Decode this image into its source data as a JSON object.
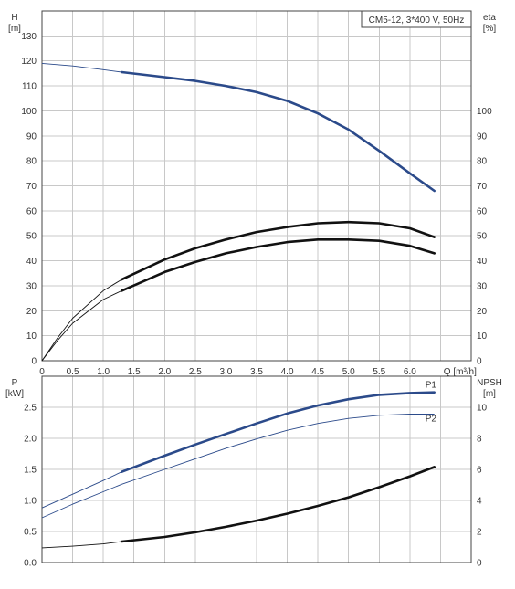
{
  "chart_data": [
    {
      "type": "line",
      "title": "CM5-12, 3*400 V, 50Hz",
      "xlabel": "Q [m³/h]",
      "x_ticks": [
        "0",
        "0.5",
        "1.0",
        "1.5",
        "2.0",
        "2.5",
        "3.0",
        "3.5",
        "4.0",
        "4.5",
        "5.0",
        "5.5",
        "6.0",
        "Q [m³/h]"
      ],
      "xlim": [
        0,
        7.0
      ],
      "ylabel_left": [
        "H",
        "[m]"
      ],
      "ylabel_right": [
        "eta",
        "[%]"
      ],
      "ylim_left": [
        0,
        140
      ],
      "ylim_right": [
        0,
        140
      ],
      "y_ticks_left": [
        0,
        10,
        20,
        30,
        40,
        50,
        60,
        70,
        80,
        90,
        100,
        110,
        120,
        130
      ],
      "y_ticks_right": [
        0,
        10,
        20,
        30,
        40,
        50,
        60,
        70,
        80,
        90,
        100
      ],
      "grid": true,
      "series": [
        {
          "name": "",
          "color": "#2b4a8a",
          "highlight_from": 1.3,
          "x": [
            0,
            0.5,
            1.0,
            1.3,
            2.0,
            2.5,
            3.0,
            3.5,
            4.0,
            4.5,
            5.0,
            5.5,
            6.0,
            6.4
          ],
          "y": [
            119,
            118,
            116.5,
            115.5,
            113.5,
            112,
            110,
            107.5,
            104,
            99,
            92.5,
            84,
            75,
            68
          ]
        },
        {
          "name": "",
          "color": "#111111",
          "highlight_from": 1.3,
          "x": [
            0,
            0.25,
            0.5,
            1.0,
            1.3,
            2.0,
            2.5,
            3.0,
            3.5,
            4.0,
            4.5,
            5.0,
            5.5,
            6.0,
            6.4
          ],
          "y": [
            0,
            9,
            17,
            28,
            32.5,
            40.5,
            45,
            48.5,
            51.5,
            53.5,
            55,
            55.5,
            55,
            53,
            49.5
          ]
        },
        {
          "name": "",
          "color": "#111111",
          "highlight_from": 1.3,
          "x": [
            0,
            0.25,
            0.5,
            1.0,
            1.3,
            2.0,
            2.5,
            3.0,
            3.5,
            4.0,
            4.5,
            5.0,
            5.5,
            6.0,
            6.4
          ],
          "y": [
            0,
            8,
            15,
            24.5,
            28,
            35.5,
            39.5,
            43,
            45.5,
            47.5,
            48.5,
            48.5,
            48,
            46,
            43
          ]
        }
      ]
    },
    {
      "type": "line",
      "xlim": [
        0,
        7.0
      ],
      "ylabel_left": [
        "P",
        "[kW]"
      ],
      "ylabel_right": [
        "NPSH",
        "[m]"
      ],
      "ylim_left": [
        0,
        3.0
      ],
      "ylim_right": [
        0,
        12
      ],
      "y_ticks_left": [
        "0.0",
        "0.5",
        "1.0",
        "1.5",
        "2.0",
        "2.5"
      ],
      "y_ticks_right": [
        0,
        2,
        4,
        6,
        8,
        10
      ],
      "grid": true,
      "series": [
        {
          "name": "P1",
          "color": "#2b4a8a",
          "highlight_from": 1.3,
          "x": [
            0,
            0.5,
            1.0,
            1.3,
            2.0,
            2.5,
            3.0,
            3.5,
            4.0,
            4.5,
            5.0,
            5.5,
            6.0,
            6.4
          ],
          "y": [
            0.88,
            1.1,
            1.32,
            1.46,
            1.72,
            1.9,
            2.07,
            2.24,
            2.4,
            2.53,
            2.63,
            2.7,
            2.73,
            2.74
          ]
        },
        {
          "name": "P2",
          "color": "#2b4a8a",
          "highlight_from": 99,
          "x": [
            0,
            0.5,
            1.0,
            1.3,
            2.0,
            2.5,
            3.0,
            3.5,
            4.0,
            4.5,
            5.0,
            5.5,
            6.0,
            6.4
          ],
          "y": [
            0.72,
            0.94,
            1.14,
            1.26,
            1.5,
            1.67,
            1.84,
            1.99,
            2.13,
            2.24,
            2.32,
            2.37,
            2.39,
            2.39
          ]
        },
        {
          "name": "",
          "axis": "right",
          "color": "#111111",
          "highlight_from": 1.3,
          "x": [
            0,
            0.5,
            1.0,
            1.3,
            2.0,
            2.5,
            3.0,
            3.5,
            4.0,
            4.5,
            5.0,
            5.5,
            6.0,
            6.4
          ],
          "y": [
            0.95,
            1.05,
            1.2,
            1.35,
            1.65,
            1.95,
            2.3,
            2.7,
            3.15,
            3.65,
            4.2,
            4.85,
            5.55,
            6.15
          ]
        }
      ]
    }
  ]
}
